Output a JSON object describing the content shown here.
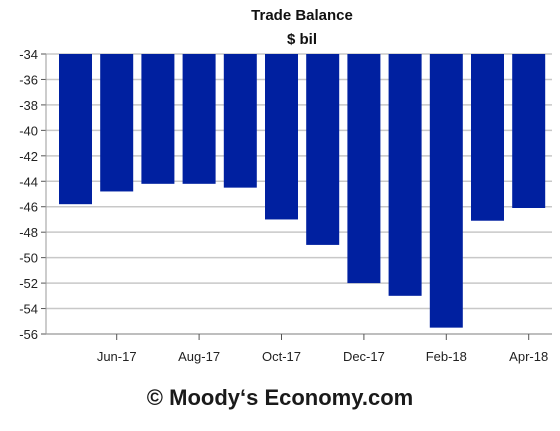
{
  "chart_data": {
    "type": "bar",
    "title": "Trade Balance",
    "subtitle": "$ bil",
    "xlabel": "",
    "ylabel": "",
    "categories": [
      "May-17",
      "Jun-17",
      "Jul-17",
      "Aug-17",
      "Sep-17",
      "Oct-17",
      "Nov-17",
      "Dec-17",
      "Jan-18",
      "Feb-18",
      "Mar-18",
      "Apr-18"
    ],
    "x_tick_labels": [
      "Jun-17",
      "Aug-17",
      "Oct-17",
      "Dec-17",
      "Feb-18",
      "Apr-18"
    ],
    "values": [
      -45.8,
      -44.8,
      -44.2,
      -44.2,
      -44.5,
      -47.0,
      -49.0,
      -52.0,
      -53.0,
      -55.5,
      -47.1,
      -46.1
    ],
    "ylim": [
      -56,
      -34
    ],
    "y_ticks": [
      -34,
      -36,
      -38,
      -40,
      -42,
      -44,
      -46,
      -48,
      -50,
      -52,
      -54,
      -56
    ],
    "grid": true,
    "legend": "none",
    "bar_color": "#0020a0",
    "grid_color": "#c8c8c8"
  },
  "footer": {
    "credit": "© Moody‘s Economy.com"
  }
}
